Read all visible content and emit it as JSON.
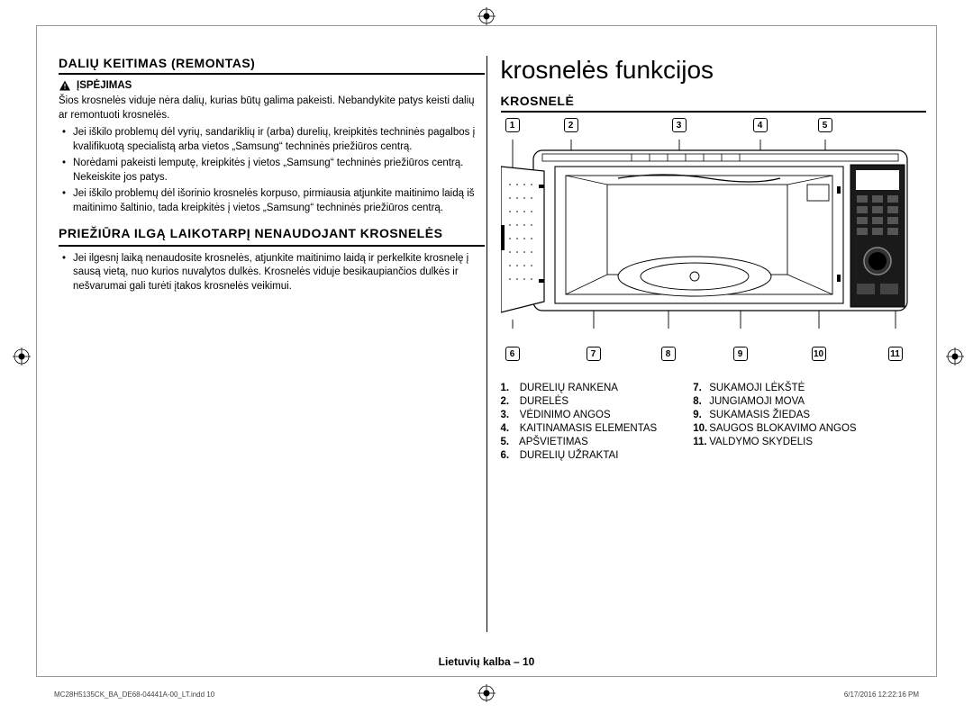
{
  "left": {
    "section1_title": "DALIŲ KEITIMAS (REMONTAS)",
    "warning_label": "ĮSPĖJIMAS",
    "warning_text": "Šios krosnelės viduje nėra dalių, kurias būtų galima pakeisti. Nebandykite patys keisti dalių ar remontuoti krosnelės.",
    "bullets1": [
      "Jei iškilo problemų dėl vyrių, sandariklių ir (arba) durelių, kreipkitės techninės pagalbos į kvalifikuotą specialistą arba vietos „Samsung“ techninės priežiūros centrą.",
      "Norėdami pakeisti lemputę, kreipkitės į vietos „Samsung“ techninės priežiūros centrą. Nekeiskite jos patys.",
      "Jei iškilo problemų dėl išorinio krosnelės korpuso, pirmiausia atjunkite maitinimo laidą iš maitinimo šaltinio, tada kreipkitės į vietos „Samsung“ techninės priežiūros centrą."
    ],
    "section2_title": "PRIEŽIŪRA ILGĄ LAIKOTARPĮ NENAUDOJANT KROSNELĖS",
    "bullets2": [
      "Jei ilgesnį laiką nenaudosite krosnelės, atjunkite maitinimo laidą ir perkelkite krosnelę į sausą vietą, nuo kurios nuvalytos dulkės. Krosnelės viduje besikaupiančios dulkės ir nešvarumai gali turėti įtakos krosnelės veikimui."
    ]
  },
  "right": {
    "chapter_title": "krosnelės funkcijos",
    "section_title": "KROSNELĖ",
    "callouts_top": [
      "1",
      "2",
      "3",
      "4",
      "5"
    ],
    "callouts_bottom": [
      "6",
      "7",
      "8",
      "9",
      "10",
      "11"
    ],
    "legend_left": [
      {
        "n": "1.",
        "t": "DURELIŲ RANKENA"
      },
      {
        "n": "2.",
        "t": "DURELĖS"
      },
      {
        "n": "3.",
        "t": "VĖDINIMO ANGOS"
      },
      {
        "n": "4.",
        "t": "KAITINAMASIS ELEMENTAS"
      },
      {
        "n": "5.",
        "t": "APŠVIETIMAS"
      },
      {
        "n": "6.",
        "t": "DURELIŲ UŽRAKTAI"
      }
    ],
    "legend_right": [
      {
        "n": "7.",
        "t": "SUKAMOJI LĖKŠTĖ"
      },
      {
        "n": "8.",
        "t": "JUNGIAMOJI MOVA"
      },
      {
        "n": "9.",
        "t": "SUKAMASIS ŽIEDAS"
      },
      {
        "n": "10.",
        "t": "SAUGOS BLOKAVIMO ANGOS"
      },
      {
        "n": "11.",
        "t": "VALDYMO SKYDELIS"
      }
    ]
  },
  "footer": {
    "page_label": "Lietuvių kalba – 10",
    "indd": "MC28H5135CK_BA_DE68-04441A-00_LT.indd   10",
    "timestamp": "6/17/2016   12:22:16 PM"
  },
  "style": {
    "callout_border": "#000000",
    "diagram_stroke": "#000000",
    "panel_fill": "#1a1a1a"
  }
}
